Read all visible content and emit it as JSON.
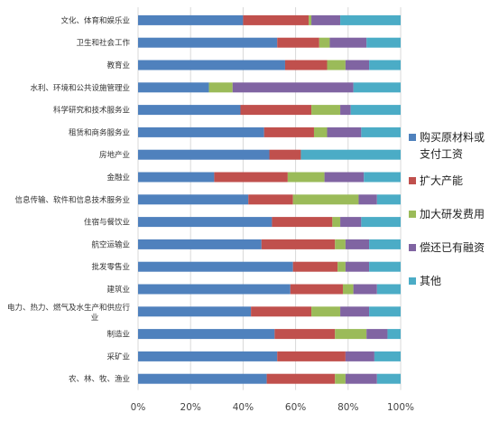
{
  "chart_data": {
    "type": "bar",
    "orientation": "horizontal",
    "stacked": "percent",
    "categories": [
      "文化、体育和娱乐业",
      "卫生和社会工作",
      "教育业",
      "水利、环境和公共设施管理业",
      "科学研究和技术服务业",
      "租赁和商务服务业",
      "房地产业",
      "金融业",
      "信息传输、软件和信息技术服务业",
      "住宿与餐饮业",
      "航空运输业",
      "批发零售业",
      "建筑业",
      "电力、热力、燃气及水生产和供应行业",
      "制造业",
      "采矿业",
      "农、林、牧、渔业"
    ],
    "series": [
      {
        "name": "购买原材料或支付工资",
        "color": "#4f81bd",
        "values": [
          40,
          53,
          56,
          27,
          39,
          48,
          50,
          29,
          42,
          51,
          47,
          59,
          58,
          43,
          52,
          53,
          49
        ]
      },
      {
        "name": "扩大产能",
        "color": "#c0504d",
        "values": [
          25,
          16,
          16,
          0,
          27,
          19,
          12,
          28,
          17,
          23,
          28,
          17,
          20,
          23,
          23,
          26,
          26
        ]
      },
      {
        "name": "加大研发费用",
        "color": "#9bbb59",
        "values": [
          1,
          4,
          7,
          9,
          11,
          5,
          0,
          14,
          25,
          3,
          4,
          3,
          4,
          11,
          12,
          0,
          4
        ]
      },
      {
        "name": "偿还已有融资",
        "color": "#8064a2",
        "values": [
          11,
          14,
          9,
          46,
          4,
          13,
          0,
          15,
          7,
          8,
          9,
          9,
          9,
          11,
          8,
          11,
          12
        ]
      },
      {
        "name": "其他",
        "color": "#4bacc6",
        "values": [
          23,
          13,
          12,
          18,
          19,
          15,
          38,
          14,
          9,
          15,
          12,
          12,
          9,
          12,
          5,
          10,
          9
        ]
      }
    ],
    "x_ticks": [
      "0%",
      "20%",
      "40%",
      "60%",
      "80%",
      "100%"
    ],
    "xlim": [
      0,
      100
    ],
    "grid": true,
    "legend_position": "right"
  }
}
